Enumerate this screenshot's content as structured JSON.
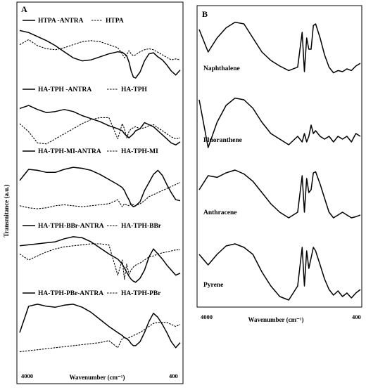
{
  "chart_data": [
    {
      "panel": "A",
      "type": "line",
      "xlabel": "Wavenumber (cm⁻¹)",
      "ylabel": "Transmitance (a.u.)",
      "x_ticks": [
        "4000",
        "400"
      ],
      "xlim": [
        4000,
        400
      ],
      "x_reversed": true,
      "x": [
        4000,
        3800,
        3600,
        3400,
        3200,
        3000,
        2800,
        2600,
        2400,
        2200,
        2000,
        1800,
        1700,
        1650,
        1600,
        1550,
        1500,
        1450,
        1400,
        1300,
        1200,
        1100,
        1000,
        900,
        800,
        700,
        600,
        500,
        400
      ],
      "groups": [
        {
          "solid_label": "HTPA -ANTRA",
          "dashed_label": "HTPA",
          "solid": [
            0.98,
            0.94,
            0.86,
            0.78,
            0.68,
            0.56,
            0.44,
            0.38,
            0.4,
            0.46,
            0.52,
            0.56,
            0.55,
            0.52,
            0.48,
            0.36,
            0.18,
            0.06,
            0.04,
            0.16,
            0.38,
            0.52,
            0.54,
            0.46,
            0.4,
            0.3,
            0.18,
            0.1,
            0.2
          ],
          "dashed": [
            0.7,
            0.8,
            0.68,
            0.62,
            0.6,
            0.64,
            0.7,
            0.76,
            0.78,
            0.76,
            0.7,
            0.64,
            0.52,
            0.44,
            0.5,
            0.58,
            0.52,
            0.48,
            0.5,
            0.56,
            0.6,
            0.62,
            0.6,
            0.55,
            0.5,
            0.45,
            0.4,
            0.42,
            0.4
          ]
        },
        {
          "solid_label": "HA-TPH -ANTRA",
          "dashed_label": "HA-TPH",
          "solid": [
            0.8,
            0.86,
            0.78,
            0.72,
            0.74,
            0.78,
            0.74,
            0.66,
            0.6,
            0.54,
            0.46,
            0.4,
            0.36,
            0.3,
            0.26,
            0.22,
            0.26,
            0.3,
            0.36,
            0.4,
            0.52,
            0.48,
            0.44,
            0.36,
            0.28,
            0.2,
            0.12,
            0.08,
            0.14
          ],
          "dashed": [
            0.5,
            0.34,
            0.12,
            0.1,
            0.2,
            0.3,
            0.4,
            0.5,
            0.58,
            0.62,
            0.62,
            0.2,
            0.5,
            0.4,
            0.22,
            0.34,
            0.4,
            0.42,
            0.44,
            0.4,
            0.42,
            0.46,
            0.48,
            0.42,
            0.36,
            0.3,
            0.24,
            0.2,
            0.22
          ]
        },
        {
          "solid_label": "HA-TPH-MI-ANTRA",
          "dashed_label": "HA-TPH-MI",
          "solid": [
            0.6,
            0.82,
            0.8,
            0.76,
            0.76,
            0.82,
            0.86,
            0.84,
            0.8,
            0.72,
            0.62,
            0.52,
            0.46,
            0.4,
            0.3,
            0.22,
            0.12,
            0.08,
            0.1,
            0.18,
            0.4,
            0.56,
            0.72,
            0.8,
            0.7,
            0.52,
            0.36,
            0.22,
            0.2
          ],
          "dashed": [
            0.1,
            0.06,
            0.04,
            0.06,
            0.1,
            0.12,
            0.1,
            0.08,
            0.1,
            0.12,
            0.14,
            0.22,
            0.08,
            0.14,
            0.12,
            0.1,
            0.14,
            0.12,
            0.1,
            0.14,
            0.2,
            0.28,
            0.32,
            0.36,
            0.4,
            0.44,
            0.48,
            0.52,
            0.56
          ]
        },
        {
          "solid_label": "HA-TPH-BBr-ANTRA",
          "dashed_label": "HA-TPH-BBr",
          "solid": [
            0.78,
            0.8,
            0.82,
            0.84,
            0.86,
            0.92,
            0.96,
            0.94,
            0.86,
            0.74,
            0.62,
            0.52,
            0.42,
            0.34,
            0.26,
            0.18,
            0.12,
            0.08,
            0.06,
            0.14,
            0.3,
            0.56,
            0.72,
            0.62,
            0.52,
            0.4,
            0.3,
            0.2,
            0.24
          ],
          "dashed": [
            0.62,
            0.5,
            0.58,
            0.66,
            0.72,
            0.76,
            0.78,
            0.8,
            0.82,
            0.82,
            0.8,
            0.2,
            0.5,
            0.12,
            0.42,
            0.22,
            0.3,
            0.36,
            0.4,
            0.44,
            0.5,
            0.56,
            0.58,
            0.62,
            0.64,
            0.66,
            0.68,
            0.7,
            0.7
          ]
        },
        {
          "solid_label": "HA-TPH-PBr-ANTRA",
          "dashed_label": "HA-TPH-PBr",
          "solid": [
            0.4,
            0.92,
            0.96,
            0.92,
            0.9,
            0.94,
            0.96,
            0.9,
            0.8,
            0.66,
            0.52,
            0.4,
            0.34,
            0.3,
            0.28,
            0.24,
            0.18,
            0.14,
            0.14,
            0.22,
            0.4,
            0.62,
            0.78,
            0.7,
            0.56,
            0.4,
            0.22,
            0.1,
            0.2
          ],
          "dashed": [
            0.02,
            0.04,
            0.06,
            0.08,
            0.1,
            0.12,
            0.14,
            0.16,
            0.18,
            0.2,
            0.24,
            0.1,
            0.28,
            0.3,
            0.28,
            0.3,
            0.32,
            0.34,
            0.36,
            0.4,
            0.46,
            0.52,
            0.58,
            0.6,
            0.6,
            0.6,
            0.56,
            0.52,
            0.56
          ]
        }
      ]
    },
    {
      "panel": "B",
      "type": "line",
      "xlabel": "Wavenumber (cm⁻¹)",
      "x_ticks": [
        "4000",
        "400"
      ],
      "xlim": [
        4000,
        400
      ],
      "x_reversed": true,
      "x": [
        4000,
        3800,
        3600,
        3400,
        3200,
        3000,
        2800,
        2600,
        2400,
        2200,
        2000,
        1800,
        1700,
        1650,
        1600,
        1550,
        1500,
        1450,
        1400,
        1300,
        1200,
        1100,
        1000,
        900,
        800,
        700,
        600,
        500,
        400
      ],
      "spectra": [
        {
          "label": "Naphthalene",
          "values": [
            0.85,
            0.45,
            0.7,
            0.88,
            0.98,
            0.95,
            0.7,
            0.45,
            0.3,
            0.2,
            0.12,
            0.18,
            0.8,
            0.1,
            0.7,
            0.5,
            0.5,
            0.92,
            0.95,
            0.7,
            0.4,
            0.18,
            0.08,
            0.12,
            0.1,
            0.15,
            0.12,
            0.2,
            0.25
          ]
        },
        {
          "label": "Fluoranthene",
          "values": [
            0.95,
            0.1,
            0.55,
            0.85,
            0.98,
            0.95,
            0.8,
            0.55,
            0.35,
            0.25,
            0.15,
            0.3,
            0.2,
            0.35,
            0.2,
            0.3,
            0.5,
            0.35,
            0.4,
            0.3,
            0.25,
            0.3,
            0.2,
            0.3,
            0.25,
            0.3,
            0.2,
            0.35,
            0.3
          ]
        },
        {
          "label": "Anthracene",
          "values": [
            0.6,
            0.85,
            0.82,
            0.9,
            0.95,
            0.88,
            0.75,
            0.55,
            0.35,
            0.2,
            0.1,
            0.2,
            0.85,
            0.2,
            0.8,
            0.55,
            0.6,
            0.9,
            0.92,
            0.7,
            0.45,
            0.2,
            0.1,
            0.15,
            0.2,
            0.15,
            0.1,
            0.12,
            0.15
          ]
        },
        {
          "label": "Pyrene",
          "values": [
            0.7,
            0.55,
            0.7,
            0.82,
            0.85,
            0.8,
            0.7,
            0.45,
            0.25,
            0.1,
            0.05,
            0.25,
            0.8,
            0.25,
            0.75,
            0.5,
            0.65,
            0.8,
            0.75,
            0.55,
            0.35,
            0.2,
            0.12,
            0.18,
            0.1,
            0.15,
            0.08,
            0.15,
            0.2
          ]
        }
      ]
    }
  ],
  "panels": {
    "a": {
      "letter": "A"
    },
    "b": {
      "letter": "B"
    }
  }
}
